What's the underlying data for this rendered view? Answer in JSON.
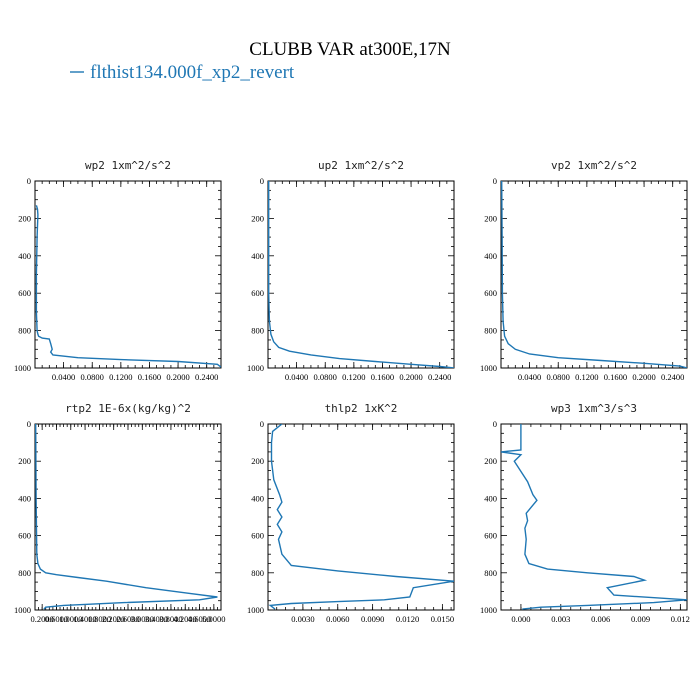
{
  "title": "CLUBB VAR at300E,17N",
  "legend": {
    "label": "flthist134.000f_xp2_revert",
    "color": "#1f77b4"
  },
  "chart_data": [
    {
      "type": "line",
      "title": "wp2  1xm^2/s^2",
      "xlim": [
        0,
        0.26
      ],
      "ylim": [
        1000,
        0
      ],
      "xticks": [
        "0.0400",
        "0.0800",
        "0.1200",
        "0.1600",
        "0.2000",
        "0.2400"
      ],
      "xtick_values": [
        0.04,
        0.08,
        0.12,
        0.16,
        0.2,
        0.24
      ],
      "yticks": [
        "0",
        "200",
        "400",
        "600",
        "800",
        "1000"
      ],
      "yticks_values": [
        0,
        200,
        400,
        600,
        800,
        1000
      ],
      "series": [
        {
          "color": "#1f77b4",
          "x": [
            0.002,
            0.0035,
            0.004,
            0.003,
            0.002,
            0.002,
            0.003,
            0.004,
            0.005,
            0.01,
            0.02,
            0.022,
            0.024,
            0.022,
            0.025,
            0.06,
            0.12,
            0.2,
            0.255,
            0.26
          ],
          "y": [
            130,
            150,
            180,
            300,
            500,
            700,
            800,
            820,
            830,
            840,
            845,
            870,
            900,
            915,
            930,
            945,
            955,
            965,
            980,
            995
          ]
        }
      ]
    },
    {
      "type": "line",
      "title": "up2  1xm^2/s^2",
      "xlim": [
        0,
        0.26
      ],
      "ylim": [
        1000,
        0
      ],
      "xticks": [
        "0.0400",
        "0.0800",
        "0.1200",
        "0.1600",
        "0.2000",
        "0.2400"
      ],
      "xtick_values": [
        0.04,
        0.08,
        0.12,
        0.16,
        0.2,
        0.24
      ],
      "yticks": [
        "0",
        "200",
        "400",
        "600",
        "800",
        "1000"
      ],
      "yticks_values": [
        0,
        200,
        400,
        600,
        800,
        1000
      ],
      "series": [
        {
          "color": "#1f77b4",
          "x": [
            0.001,
            0.001,
            0.001,
            0.002,
            0.004,
            0.008,
            0.015,
            0.03,
            0.06,
            0.1,
            0.15,
            0.2,
            0.24,
            0.26
          ],
          "y": [
            0,
            300,
            600,
            750,
            820,
            860,
            890,
            910,
            930,
            950,
            965,
            980,
            992,
            1000
          ]
        }
      ]
    },
    {
      "type": "line",
      "title": "vp2  1xm^2/s^2",
      "xlim": [
        0,
        0.26
      ],
      "ylim": [
        1000,
        0
      ],
      "xticks": [
        "0.0400",
        "0.0800",
        "0.1200",
        "0.1600",
        "0.2000",
        "0.2400"
      ],
      "xtick_values": [
        0.04,
        0.08,
        0.12,
        0.16,
        0.2,
        0.24
      ],
      "yticks": [
        "0",
        "200",
        "400",
        "600",
        "800",
        "1000"
      ],
      "yticks_values": [
        0,
        200,
        400,
        600,
        800,
        1000
      ],
      "series": [
        {
          "color": "#1f77b4",
          "x": [
            0.001,
            0.0015,
            0.002,
            0.003,
            0.005,
            0.01,
            0.02,
            0.04,
            0.08,
            0.14,
            0.2,
            0.25,
            0.26
          ],
          "y": [
            0,
            300,
            600,
            750,
            830,
            870,
            900,
            925,
            945,
            960,
            975,
            990,
            1000
          ]
        }
      ]
    },
    {
      "type": "line",
      "title": "rtp2  1E-6x(kg/kg)^2",
      "xlim": [
        0,
        5.2
      ],
      "ylim": [
        1000,
        0
      ],
      "xticks": [
        "0.2000",
        "0.6000",
        "1.0000",
        "1.4000",
        "1.8000",
        "2.2000",
        "2.6000",
        "3.0000",
        "3.4000",
        "3.8000",
        "4.2000",
        "4.6000",
        "5.0000"
      ],
      "xtick_values": [
        0.2,
        0.6,
        1.0,
        1.4,
        1.8,
        2.2,
        2.6,
        3.0,
        3.4,
        3.8,
        4.2,
        4.6,
        5.0
      ],
      "yticks": [
        "0",
        "200",
        "400",
        "600",
        "800",
        "1000"
      ],
      "yticks_values": [
        0,
        200,
        400,
        600,
        800,
        1000
      ],
      "series": [
        {
          "color": "#1f77b4",
          "x": [
            0.02,
            0.03,
            0.05,
            0.08,
            0.15,
            0.3,
            0.6,
            1.2,
            2.0,
            3.1,
            4.3,
            5.1,
            4.6,
            2.5,
            0.8,
            0.3,
            0.25
          ],
          "y": [
            0,
            400,
            700,
            750,
            780,
            800,
            810,
            825,
            845,
            880,
            910,
            930,
            945,
            960,
            975,
            985,
            995
          ]
        }
      ]
    },
    {
      "type": "line",
      "title": "thlp2  1xK^2",
      "xlim": [
        0,
        0.016
      ],
      "ylim": [
        1000,
        0
      ],
      "xticks": [
        "0.0030",
        "0.0060",
        "0.0090",
        "0.0120",
        "0.0150"
      ],
      "xtick_values": [
        0.003,
        0.006,
        0.009,
        0.012,
        0.015
      ],
      "yticks": [
        "0",
        "200",
        "400",
        "600",
        "800",
        "1000"
      ],
      "yticks_values": [
        0,
        200,
        400,
        600,
        800,
        1000
      ],
      "series": [
        {
          "color": "#1f77b4",
          "x": [
            0.0012,
            0.0004,
            0.0003,
            0.0003,
            0.0005,
            0.001,
            0.0012,
            0.0008,
            0.0012,
            0.0008,
            0.0012,
            0.0009,
            0.0012,
            0.002,
            0.006,
            0.011,
            0.016,
            0.0125,
            0.0122,
            0.01,
            0.006,
            0.002,
            0.0002,
            0.0004,
            0.0006
          ],
          "y": [
            0,
            40,
            100,
            200,
            300,
            380,
            420,
            460,
            500,
            540,
            580,
            620,
            700,
            760,
            790,
            820,
            845,
            880,
            930,
            945,
            955,
            965,
            975,
            985,
            995
          ]
        }
      ]
    },
    {
      "type": "line",
      "title": "wp3  1xm^3/s^3",
      "xlim": [
        -0.0015,
        0.0125
      ],
      "ylim": [
        1000,
        0
      ],
      "xticks": [
        "0.000",
        "0.003",
        "0.006",
        "0.009",
        "0.012"
      ],
      "xtick_values": [
        0.0,
        0.003,
        0.006,
        0.009,
        0.012
      ],
      "yticks": [
        "0",
        "200",
        "400",
        "600",
        "800",
        "1000"
      ],
      "yticks_values": [
        0,
        200,
        400,
        600,
        800,
        1000
      ],
      "series": [
        {
          "color": "#1f77b4",
          "x": [
            0.0,
            0.0,
            -0.0015,
            0.0,
            -0.0005,
            0.0005,
            0.0009,
            0.0012,
            0.0004,
            0.0005,
            0.0003,
            0.0004,
            0.0003,
            0.0006,
            0.002,
            0.005,
            0.0085,
            0.0093,
            0.0065,
            0.007,
            0.0125,
            0.01,
            0.005,
            0.0015,
            0.0001
          ],
          "y": [
            0,
            140,
            150,
            165,
            200,
            310,
            380,
            410,
            480,
            520,
            560,
            620,
            700,
            750,
            780,
            800,
            820,
            840,
            880,
            920,
            945,
            960,
            975,
            985,
            995
          ]
        }
      ]
    }
  ]
}
